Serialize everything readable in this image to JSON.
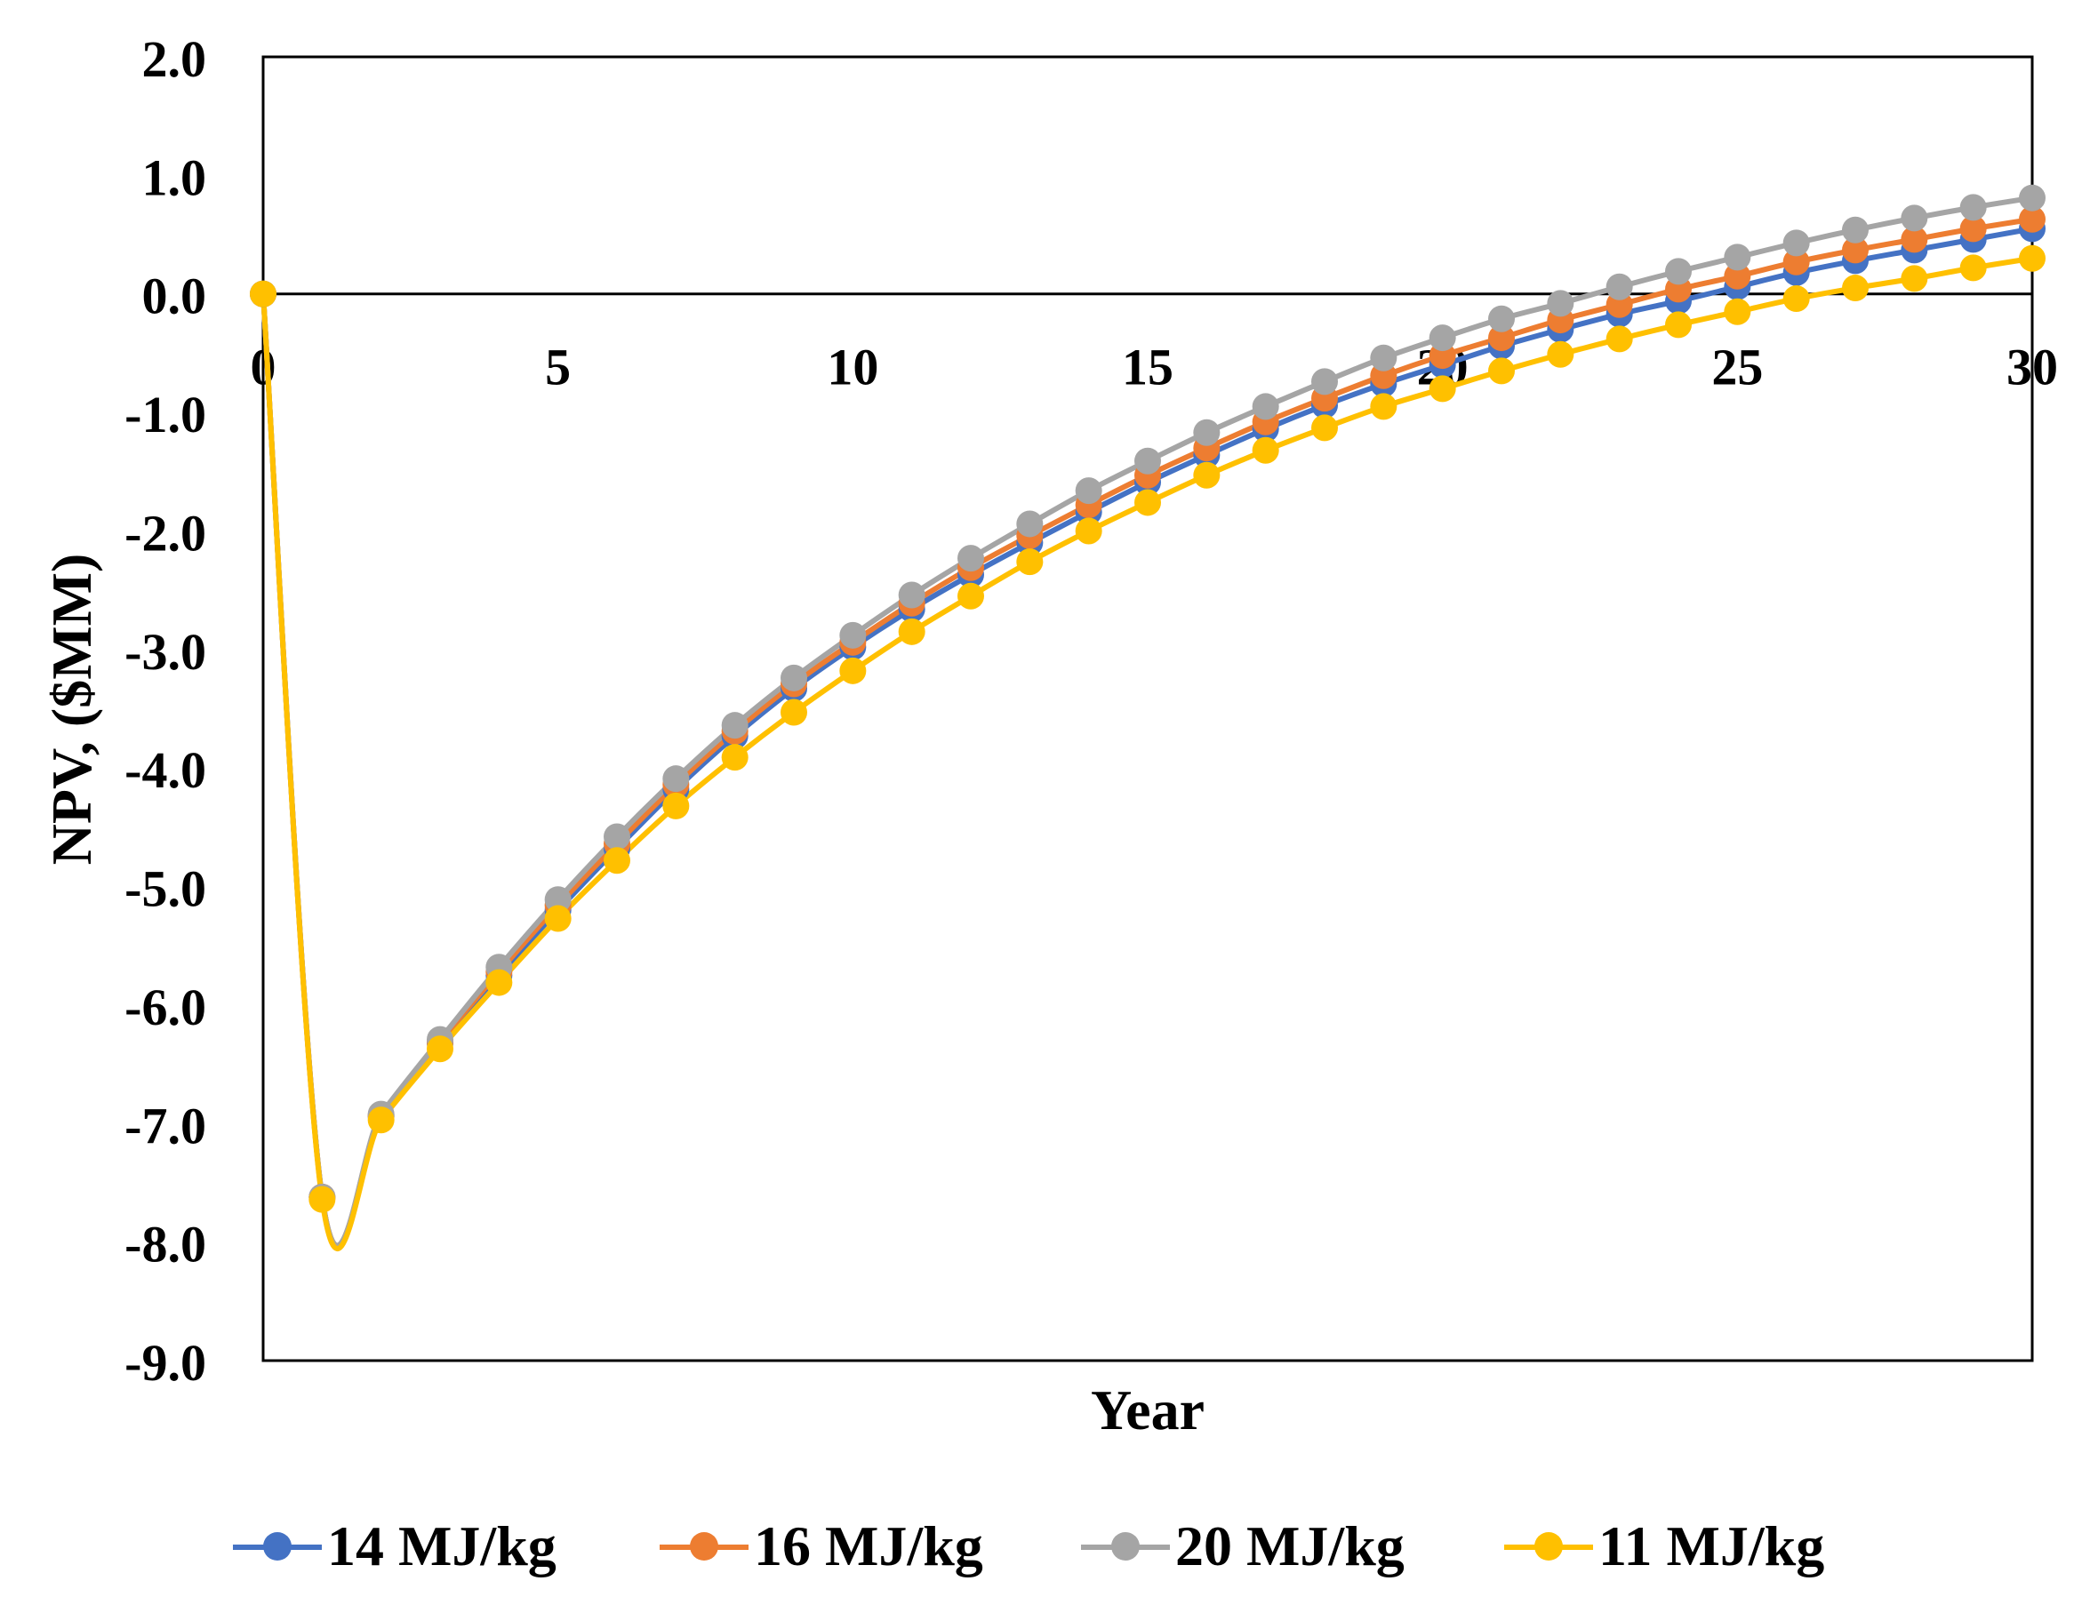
{
  "chart_data": {
    "type": "line",
    "title": "",
    "xlabel": "Year",
    "ylabel": "NPV, ($MM)",
    "xlim": [
      0,
      30
    ],
    "ylim": [
      -9,
      2
    ],
    "xticks": [
      0,
      5,
      10,
      15,
      20,
      25,
      30
    ],
    "xtick_labels": [
      "0",
      "5",
      "10",
      "15",
      "20",
      "25",
      "30"
    ],
    "yticks": [
      2,
      1,
      0,
      -1,
      -2,
      -3,
      -4,
      -5,
      -6,
      -7,
      -8,
      -9
    ],
    "ytick_labels": [
      "2.0",
      "1.0",
      "0.0",
      "-1.0",
      "-2.0",
      "-3.0",
      "-4.0",
      "-5.0",
      "-6.0",
      "-7.0",
      "-8.0",
      "-9.0"
    ],
    "x_axis_crosses_at": 0,
    "grid": false,
    "legend_position": "bottom",
    "x": [
      0,
      1,
      2,
      3,
      4,
      5,
      6,
      7,
      8,
      9,
      10,
      11,
      12,
      13,
      14,
      15,
      16,
      17,
      18,
      19,
      20,
      21,
      22,
      23,
      24,
      25,
      26,
      27,
      28,
      29,
      30
    ],
    "series": [
      {
        "name": "14 MJ/kg",
        "color": "#4472C4",
        "values": [
          0,
          -7.62,
          -6.94,
          -6.32,
          -5.75,
          -5.2,
          -4.68,
          -4.18,
          -3.73,
          -3.33,
          -2.98,
          -2.66,
          -2.37,
          -2.1,
          -1.84,
          -1.59,
          -1.36,
          -1.14,
          -0.94,
          -0.76,
          -0.6,
          -0.44,
          -0.3,
          -0.17,
          -0.06,
          0.06,
          0.18,
          0.28,
          0.37,
          0.46,
          0.55
        ]
      },
      {
        "name": "16 MJ/kg",
        "color": "#ED7D31",
        "values": [
          0,
          -7.62,
          -6.93,
          -6.31,
          -5.72,
          -5.16,
          -4.64,
          -4.14,
          -3.69,
          -3.29,
          -2.94,
          -2.61,
          -2.31,
          -2.04,
          -1.78,
          -1.53,
          -1.3,
          -1.08,
          -0.88,
          -0.69,
          -0.52,
          -0.37,
          -0.22,
          -0.09,
          0.04,
          0.15,
          0.27,
          0.37,
          0.46,
          0.55,
          0.63
        ]
      },
      {
        "name": "20 MJ/kg",
        "color": "#A5A5A5",
        "values": [
          0,
          -7.62,
          -6.92,
          -6.29,
          -5.68,
          -5.11,
          -4.58,
          -4.09,
          -3.64,
          -3.24,
          -2.88,
          -2.54,
          -2.23,
          -1.94,
          -1.66,
          -1.41,
          -1.17,
          -0.95,
          -0.74,
          -0.54,
          -0.37,
          -0.21,
          -0.08,
          0.06,
          0.19,
          0.31,
          0.43,
          0.54,
          0.64,
          0.73,
          0.81
        ]
      },
      {
        "name": "11 MJ/kg",
        "color": "#FFC000",
        "values": [
          0,
          -7.64,
          -6.97,
          -6.37,
          -5.81,
          -5.27,
          -4.78,
          -4.32,
          -3.91,
          -3.53,
          -3.18,
          -2.85,
          -2.55,
          -2.26,
          -2.0,
          -1.76,
          -1.53,
          -1.32,
          -1.13,
          -0.95,
          -0.8,
          -0.65,
          -0.51,
          -0.38,
          -0.26,
          -0.15,
          -0.04,
          0.05,
          0.13,
          0.22,
          0.3
        ]
      }
    ]
  }
}
